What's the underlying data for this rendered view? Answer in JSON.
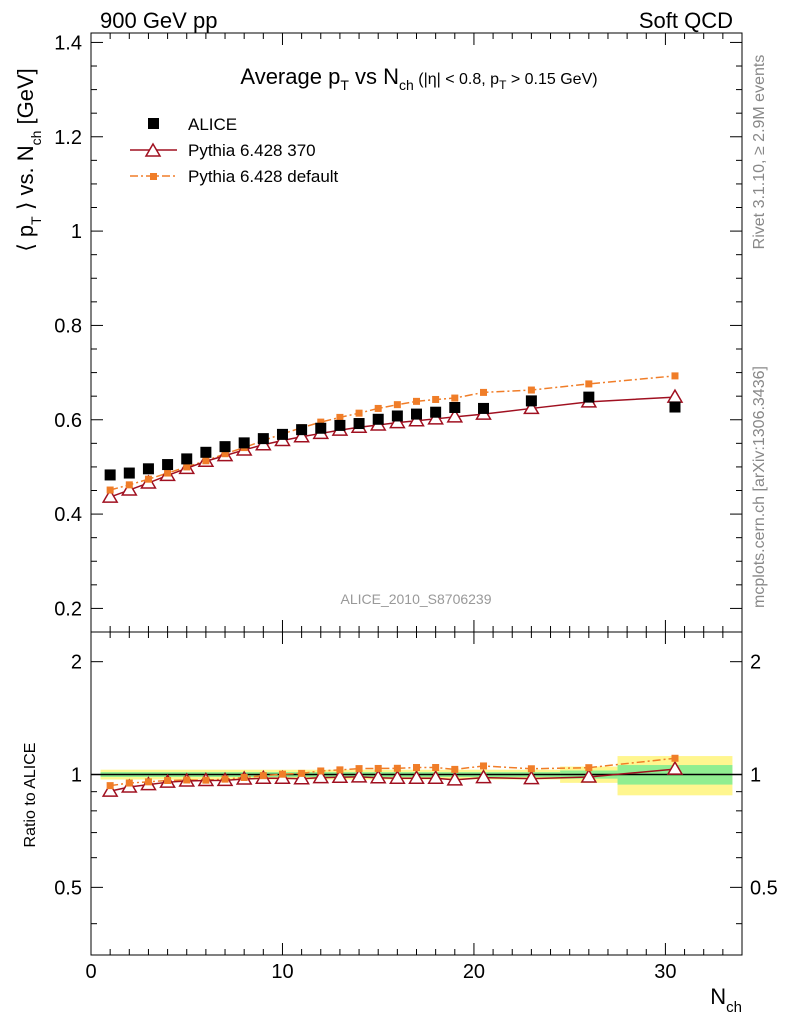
{
  "header": {
    "left": "900 GeV pp",
    "right": "Soft QCD"
  },
  "side_text": {
    "rivet": "Rivet 3.1.10, ≥ 2.9M events",
    "mcplots": "mcplots.cern.ch [arXiv:1306.3436]"
  },
  "chart_data": [
    {
      "type": "scatter",
      "title": "Average pT vs Nch (|η| < 0.8, pT > 0.15 GeV)",
      "title_parts": {
        "a": "Average p",
        "a_sub": "T",
        "b": " vs N",
        "b_sub": "ch",
        "c": " (|η| < 0.8, p",
        "c_sub": "T",
        "d": " > 0.15 GeV)"
      },
      "ylabel_parts": {
        "a": "⟨ p",
        "a_sub": "T",
        "b": " ⟩ vs. N",
        "b_sub": "ch",
        "c": " [GeV]"
      },
      "analysis_label": "ALICE_2010_S8706239",
      "xlim": [
        0,
        34
      ],
      "ylim": [
        0.15,
        1.42
      ],
      "x_ticks": [
        0,
        10,
        20,
        30
      ],
      "y_ticks": [
        "0.2",
        "0.4",
        "0.6",
        "0.8",
        "1",
        "1.2",
        "1.4"
      ],
      "legend_position": "top-left",
      "series": [
        {
          "name": "ALICE",
          "style": "data",
          "color": "#000000",
          "x": [
            1,
            2,
            3,
            4,
            5,
            6,
            7,
            8,
            9,
            10,
            11,
            12,
            13,
            14,
            15,
            16,
            17,
            18,
            19,
            20.5,
            23,
            26,
            30.5
          ],
          "y": [
            0.483,
            0.487,
            0.496,
            0.505,
            0.517,
            0.531,
            0.543,
            0.551,
            0.56,
            0.569,
            0.579,
            0.582,
            0.588,
            0.592,
            0.601,
            0.608,
            0.612,
            0.616,
            0.626,
            0.624,
            0.64,
            0.648,
            0.627
          ]
        },
        {
          "name": "Pythia 6.428 370",
          "style": "line-triangle",
          "color": "#a01020",
          "x": [
            1,
            2,
            3,
            4,
            5,
            6,
            7,
            8,
            9,
            10,
            11,
            12,
            13,
            14,
            15,
            16,
            17,
            18,
            19,
            20.5,
            23,
            26,
            30.5
          ],
          "y": [
            0.436,
            0.451,
            0.466,
            0.482,
            0.497,
            0.512,
            0.524,
            0.536,
            0.547,
            0.556,
            0.564,
            0.571,
            0.578,
            0.584,
            0.589,
            0.594,
            0.598,
            0.602,
            0.606,
            0.612,
            0.624,
            0.638,
            0.648
          ]
        },
        {
          "name": "Pythia 6.428 default",
          "style": "dashdot-square",
          "color": "#f07d28",
          "x": [
            1,
            2,
            3,
            4,
            5,
            6,
            7,
            8,
            9,
            10,
            11,
            12,
            13,
            14,
            15,
            16,
            17,
            18,
            19,
            20.5,
            23,
            26,
            30.5
          ],
          "y": [
            0.451,
            0.462,
            0.474,
            0.487,
            0.5,
            0.513,
            0.528,
            0.541,
            0.556,
            0.57,
            0.583,
            0.595,
            0.605,
            0.614,
            0.624,
            0.632,
            0.639,
            0.643,
            0.646,
            0.658,
            0.663,
            0.676,
            0.693
          ]
        }
      ]
    },
    {
      "type": "scatter",
      "ylabel": "Ratio to ALICE",
      "xlabel_parts": {
        "a": "N",
        "a_sub": "ch"
      },
      "xlim": [
        0,
        34
      ],
      "ylim": [
        0.33,
        2.4
      ],
      "scale": "log",
      "x_ticks": [
        0,
        10,
        20,
        30
      ],
      "y_ticks": [
        {
          "value": 0.5,
          "label": "0.5"
        },
        {
          "value": 1,
          "label": "1"
        },
        {
          "value": 2,
          "label": "2"
        }
      ],
      "bands": [
        {
          "x0": 0.5,
          "x1": 24.5,
          "inner": 0.015,
          "outer": 0.03
        },
        {
          "x0": 24.5,
          "x1": 27.5,
          "inner": 0.025,
          "outer": 0.05
        },
        {
          "x0": 27.5,
          "x1": 33.5,
          "inner": 0.06,
          "outer": 0.12
        }
      ],
      "band_colors": {
        "inner": "#90ee90",
        "outer": "#fff68f"
      },
      "series": [
        {
          "name": "Pythia 6.428 370",
          "color": "#a01020",
          "x": [
            1,
            2,
            3,
            4,
            5,
            6,
            7,
            8,
            9,
            10,
            11,
            12,
            13,
            14,
            15,
            16,
            17,
            18,
            19,
            20.5,
            23,
            26,
            30.5
          ],
          "y": [
            0.903,
            0.926,
            0.94,
            0.954,
            0.961,
            0.964,
            0.965,
            0.973,
            0.977,
            0.977,
            0.974,
            0.981,
            0.983,
            0.986,
            0.98,
            0.977,
            0.977,
            0.977,
            0.968,
            0.981,
            0.975,
            0.985,
            1.034
          ]
        },
        {
          "name": "Pythia 6.428 default",
          "color": "#f07d28",
          "x": [
            1,
            2,
            3,
            4,
            5,
            6,
            7,
            8,
            9,
            10,
            11,
            12,
            13,
            14,
            15,
            16,
            17,
            18,
            19,
            20.5,
            23,
            26,
            30.5
          ],
          "y": [
            0.934,
            0.949,
            0.956,
            0.964,
            0.967,
            0.966,
            0.972,
            0.982,
            0.993,
            1.002,
            1.007,
            1.022,
            1.029,
            1.037,
            1.038,
            1.039,
            1.044,
            1.044,
            1.032,
            1.054,
            1.036,
            1.043,
            1.105
          ]
        }
      ]
    }
  ]
}
